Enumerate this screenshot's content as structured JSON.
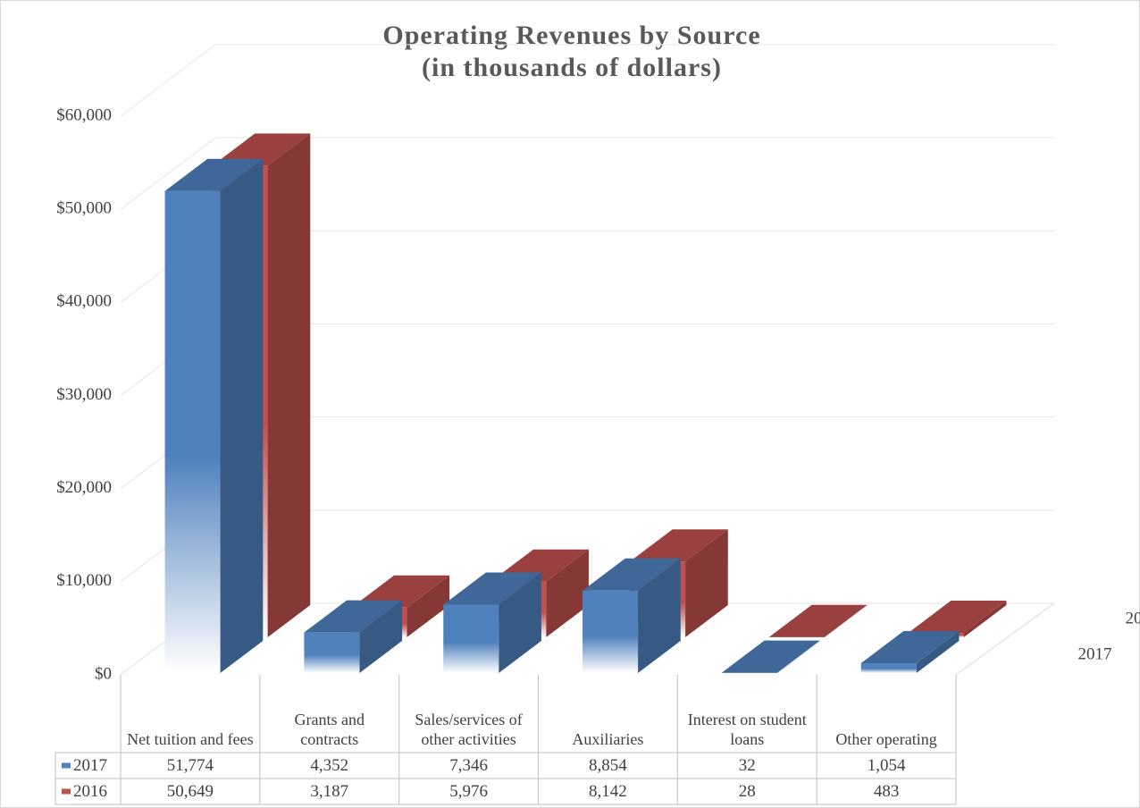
{
  "chart_data": {
    "type": "bar",
    "title": "Operating Revenues by Source",
    "subtitle": "(in thousands of dollars)",
    "categories": [
      "Net tuition and fees",
      "Grants and contracts",
      "Sales/services of other activities",
      "Auxiliaries",
      "Interest on student loans",
      "Other operating"
    ],
    "series": [
      {
        "name": "2017",
        "color": "#4f81bd",
        "values": [
          51774,
          4352,
          7346,
          8854,
          32,
          1054
        ],
        "value_labels": [
          "51,774",
          "4,352",
          "7,346",
          "8,854",
          "32",
          "1,054"
        ]
      },
      {
        "name": "2016",
        "color": "#c0504d",
        "values": [
          50649,
          3187,
          5976,
          8142,
          28,
          483
        ],
        "value_labels": [
          "50,649",
          "3,187",
          "5,976",
          "8,142",
          "28",
          "483"
        ]
      }
    ],
    "ylim": [
      0,
      60000
    ],
    "yticks": [
      {
        "value": 0,
        "label": "$0"
      },
      {
        "value": 10000,
        "label": "$10,000"
      },
      {
        "value": 20000,
        "label": "$20,000"
      },
      {
        "value": 30000,
        "label": "$30,000"
      },
      {
        "value": 40000,
        "label": "$40,000"
      },
      {
        "value": 50000,
        "label": "$50,000"
      },
      {
        "value": 60000,
        "label": "$60,000"
      }
    ],
    "grid": true
  }
}
